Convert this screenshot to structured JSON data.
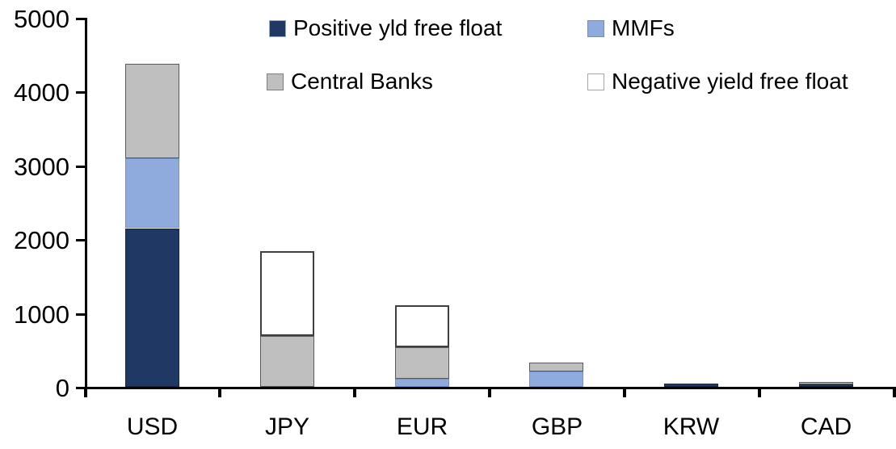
{
  "chart_data": {
    "type": "bar",
    "stacked": true,
    "title": "",
    "xlabel": "",
    "ylabel": "",
    "categories": [
      "USD",
      "JPY",
      "EUR",
      "GBP",
      "KRW",
      "CAD"
    ],
    "series": [
      {
        "name": "Positive yld free float",
        "color": "#1F3864",
        "values": [
          2150,
          0,
          0,
          0,
          45,
          30
        ]
      },
      {
        "name": "MMFs",
        "color": "#8FAADC",
        "values": [
          950,
          0,
          110,
          210,
          0,
          0
        ]
      },
      {
        "name": "Central Banks",
        "color": "#BFBFBF",
        "values": [
          1280,
          690,
          425,
          120,
          0,
          35
        ]
      },
      {
        "name": "Negative yield free float",
        "color": "#FFFFFF",
        "values": [
          0,
          1150,
          575,
          0,
          0,
          0
        ]
      }
    ],
    "ylim": [
      0,
      5000
    ],
    "yticks": [
      0,
      1000,
      2000,
      3000,
      4000,
      5000
    ],
    "grid": false,
    "legend_position": "top",
    "axis_color": "#000000",
    "text_color": "#000000"
  }
}
